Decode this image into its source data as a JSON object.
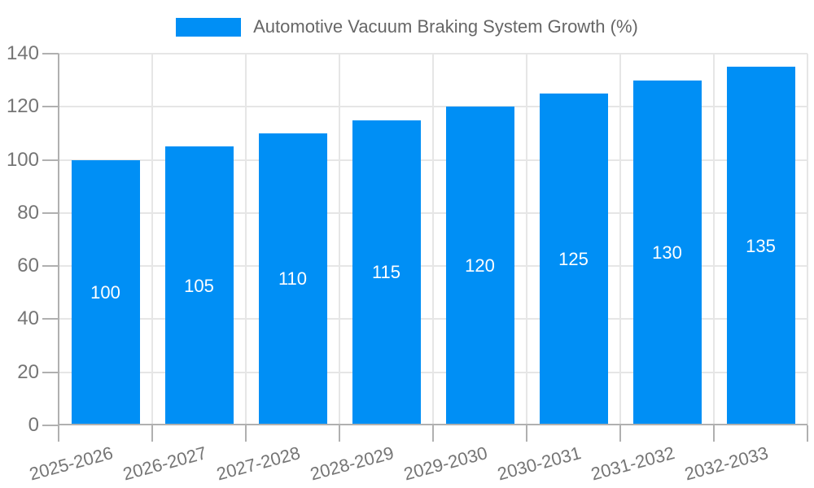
{
  "chart_data": {
    "type": "bar",
    "categories": [
      "2025-2026",
      "2026-2027",
      "2027-2028",
      "2028-2029",
      "2029-2030",
      "2030-2031",
      "2031-2032",
      "2032-2033"
    ],
    "series": [
      {
        "name": "Automotive Vacuum Braking System Growth (%)",
        "values": [
          100,
          105,
          110,
          115,
          120,
          125,
          130,
          135
        ]
      }
    ],
    "value_labels": [
      "100",
      "105",
      "110",
      "115",
      "120",
      "125",
      "130",
      "135"
    ],
    "title": "",
    "xlabel": "",
    "ylabel": "",
    "ylim": [
      0,
      140
    ],
    "yticks": [
      0,
      20,
      40,
      60,
      80,
      100,
      120,
      140
    ],
    "grid": "on",
    "legend_position": "top-center",
    "x_label_rotation_deg": -15,
    "colors": {
      "bar": "#008ff5",
      "grid": "#e6e6e6",
      "axis": "#b0b0b0",
      "tick_label": "#757575",
      "legend_text": "#666666",
      "value_label": "#ffffff",
      "background": "#ffffff"
    }
  }
}
